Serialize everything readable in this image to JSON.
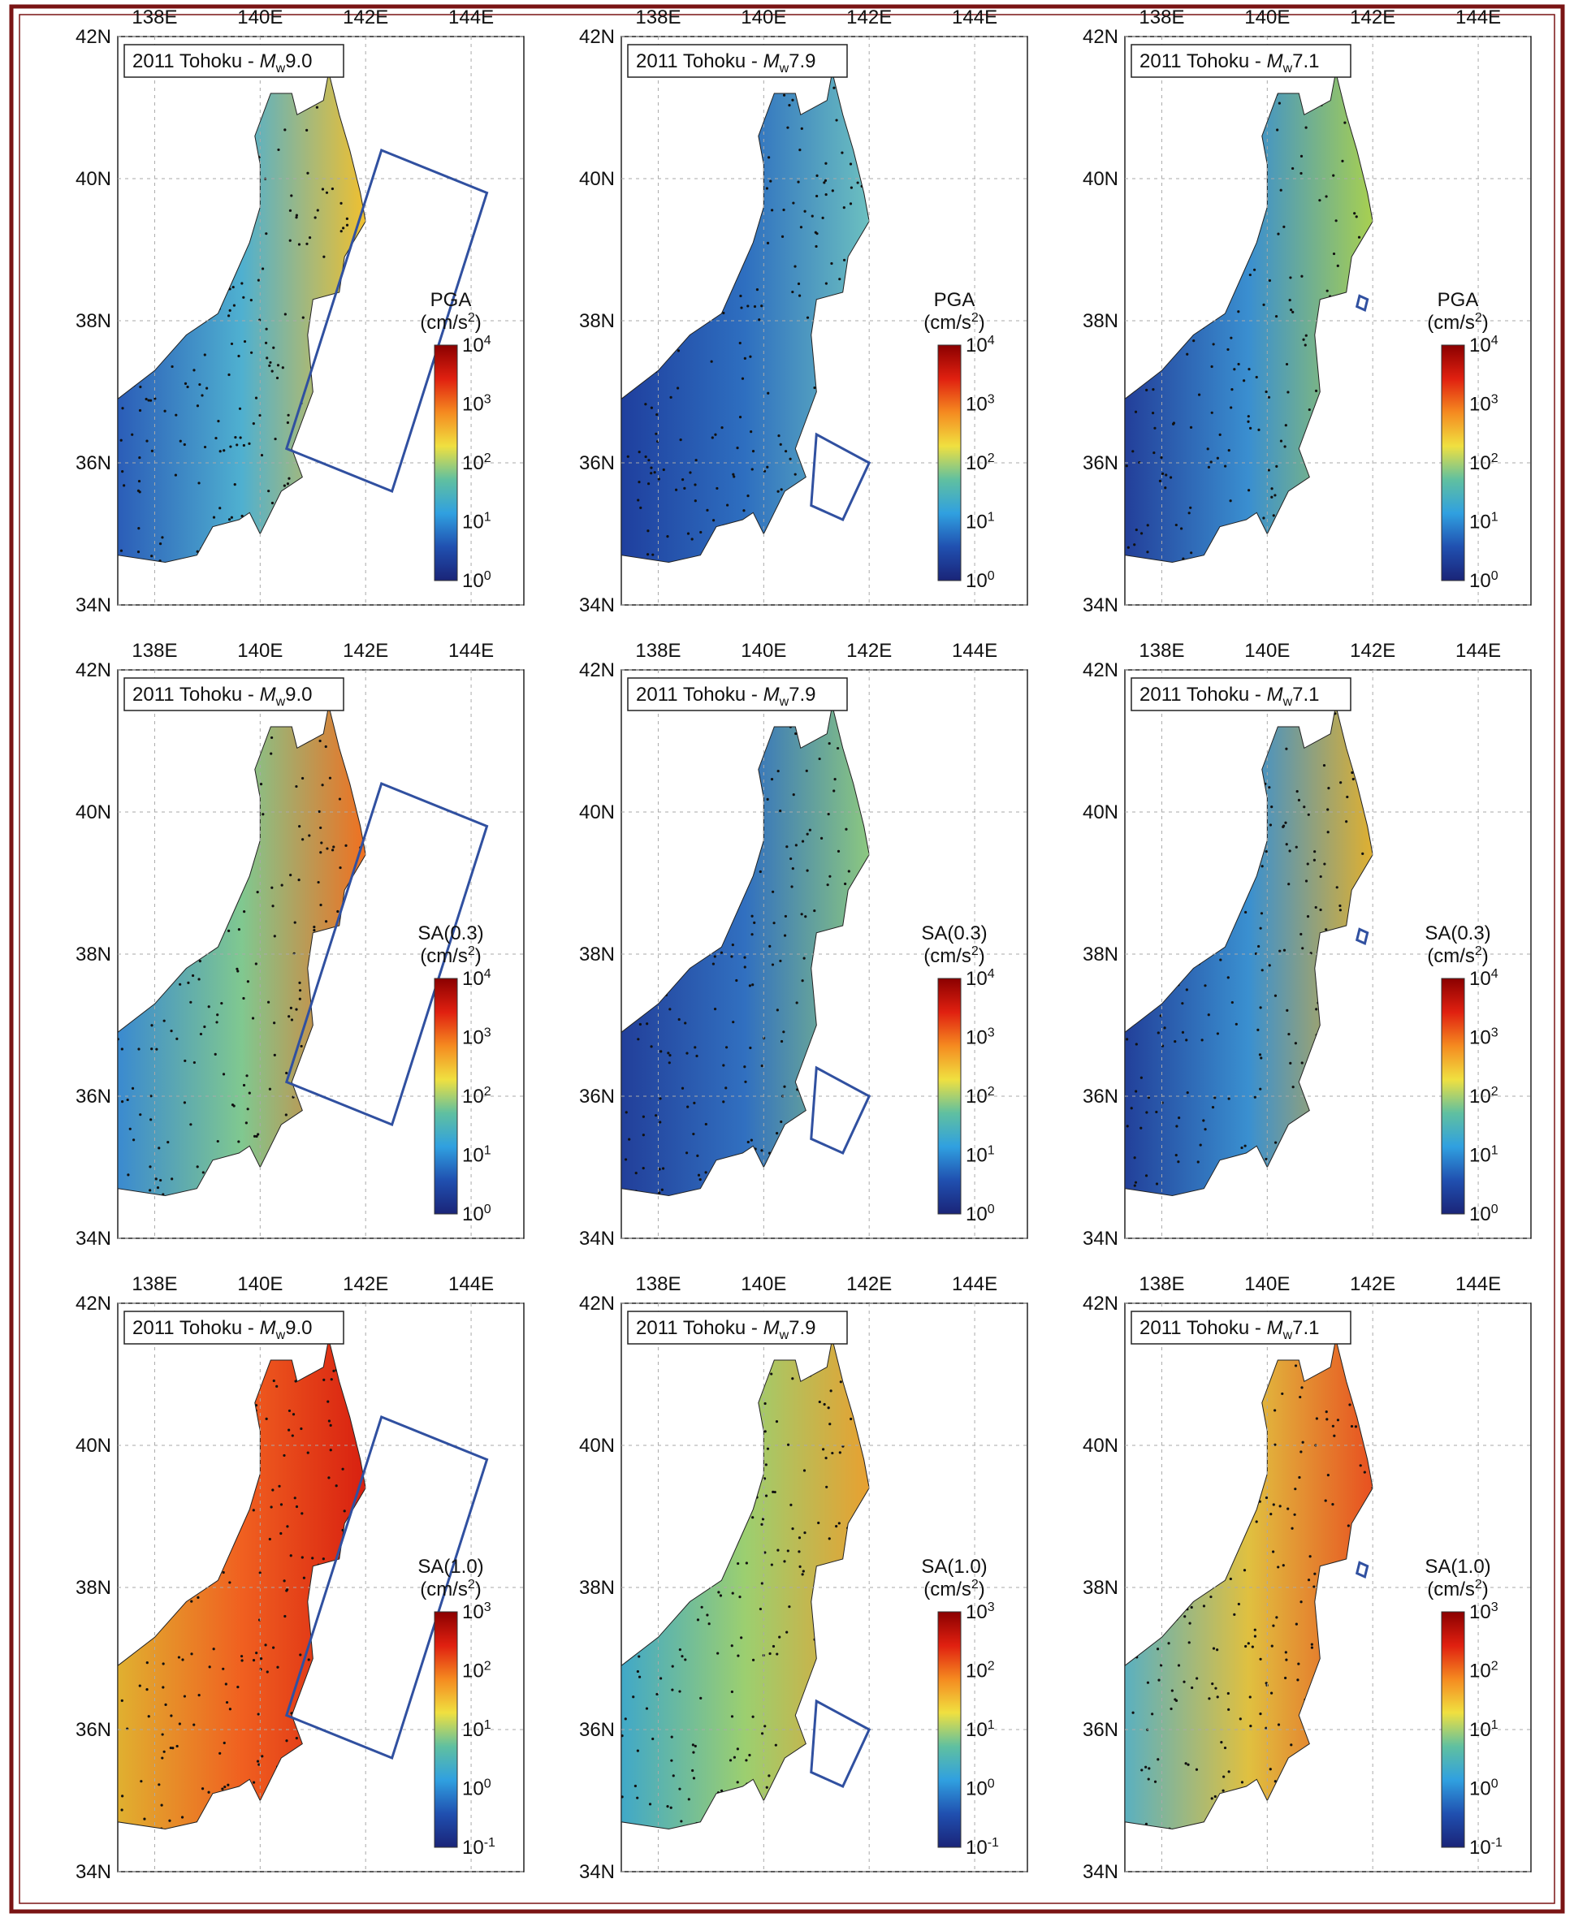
{
  "map": {
    "lon_ticks": [
      "138E",
      "140E",
      "142E",
      "144E"
    ],
    "lat_ticks": [
      "42N",
      "40N",
      "38N",
      "36N",
      "34N"
    ],
    "event": "2011 Tohoku - ",
    "magnitude_symbol": "M",
    "magnitude_subscript": "w",
    "magnitudes": [
      "9.0",
      "7.9",
      "7.1"
    ],
    "unit_open": "(cm/s",
    "unit_exponent": "2",
    "unit_close": ")",
    "colorbar_base": "10",
    "rows": [
      {
        "measure": "PGA",
        "colorbar_exponents": [
          "4",
          "3",
          "2",
          "1",
          "0"
        ]
      },
      {
        "measure": "SA(0.3)",
        "colorbar_exponents": [
          "4",
          "3",
          "2",
          "1",
          "0"
        ]
      },
      {
        "measure": "SA(1.0)",
        "colorbar_exponents": [
          "3",
          "2",
          "1",
          "0",
          "-1"
        ]
      }
    ]
  }
}
